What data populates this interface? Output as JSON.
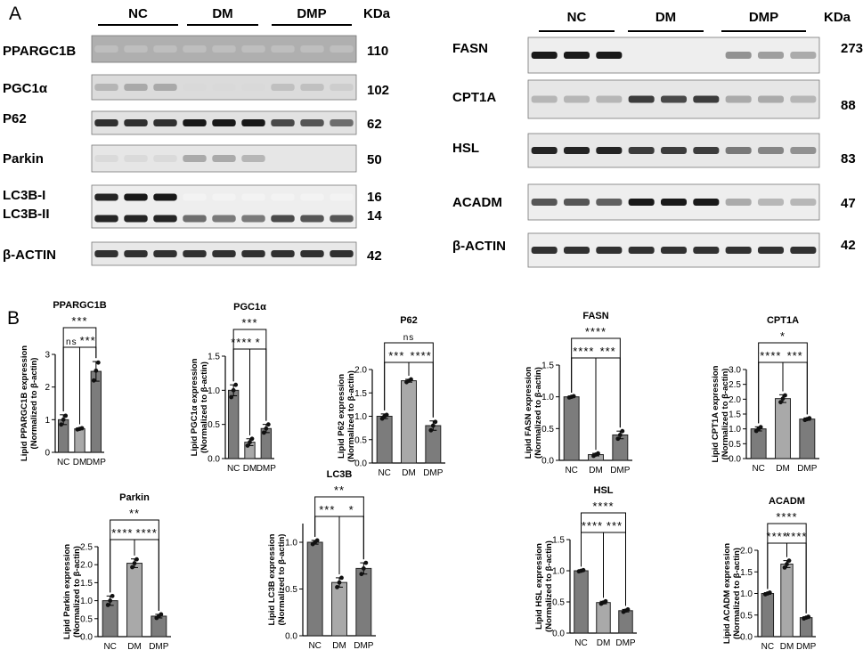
{
  "figure": {
    "panel_a_label": "A",
    "panel_b_label": "B",
    "blot_left": {
      "groups": [
        "NC",
        "DM",
        "DMP"
      ],
      "unit": "KDa",
      "rows": [
        {
          "name": "PPARGC1B",
          "kda": "110",
          "bands": [
            0.25,
            0.25,
            0.25,
            0.25,
            0.25,
            0.25,
            0.25,
            0.25,
            0.25
          ],
          "bg": 0.55
        },
        {
          "name": "PGC1α",
          "kda": "102",
          "bands": [
            0.3,
            0.35,
            0.35,
            0.15,
            0.15,
            0.15,
            0.25,
            0.25,
            0.2
          ],
          "bg": 0.2
        },
        {
          "name": "P62",
          "kda": "62",
          "bands": [
            0.85,
            0.85,
            0.85,
            0.95,
            0.95,
            0.95,
            0.75,
            0.7,
            0.6
          ],
          "bg": 0.15
        },
        {
          "name": "Parkin",
          "kda": "50",
          "bands": [
            0.15,
            0.15,
            0.15,
            0.35,
            0.35,
            0.3,
            0.1,
            0.1,
            0.1
          ],
          "bg": 0.12
        },
        {
          "name": "LC3B-I",
          "name2": "LC3B-II",
          "kda": "16",
          "kda2": "14",
          "bands": [
            0.9,
            0.95,
            0.95,
            0.05,
            0.05,
            0.05,
            0.05,
            0.05,
            0.05
          ],
          "bands2": [
            0.9,
            0.9,
            0.9,
            0.6,
            0.55,
            0.55,
            0.75,
            0.7,
            0.7
          ],
          "bg": 0.05
        },
        {
          "name": "β-ACTIN",
          "kda": "42",
          "bands": [
            0.85,
            0.85,
            0.85,
            0.85,
            0.85,
            0.85,
            0.85,
            0.85,
            0.85
          ],
          "bg": 0.1
        }
      ]
    },
    "blot_right": {
      "groups": [
        "NC",
        "DM",
        "DMP"
      ],
      "unit": "KDa",
      "rows": [
        {
          "name": "FASN",
          "kda": "273",
          "bands": [
            0.95,
            0.95,
            0.95,
            0.0,
            0.0,
            0.0,
            0.45,
            0.4,
            0.35
          ],
          "bg": 0.05
        },
        {
          "name": "CPT1A",
          "kda": "88",
          "bands": [
            0.3,
            0.3,
            0.3,
            0.8,
            0.75,
            0.8,
            0.35,
            0.35,
            0.3
          ],
          "bg": 0.12
        },
        {
          "name": "HSL",
          "kda": "83",
          "bands": [
            0.9,
            0.9,
            0.9,
            0.8,
            0.8,
            0.8,
            0.55,
            0.5,
            0.45
          ],
          "bg": 0.1
        },
        {
          "name": "ACADM",
          "kda": "47",
          "bands": [
            0.7,
            0.7,
            0.65,
            0.95,
            0.95,
            0.95,
            0.35,
            0.3,
            0.3
          ],
          "bg": 0.05
        },
        {
          "name": "β-ACTIN",
          "kda": "42",
          "bands": [
            0.85,
            0.85,
            0.85,
            0.85,
            0.85,
            0.85,
            0.85,
            0.85,
            0.85
          ],
          "bg": 0.05
        }
      ]
    }
  },
  "chart_data": [
    {
      "type": "bar",
      "title": "PPARGC1B",
      "ylabel": "Lipid PPARGC1B expression\n(Normalized to β-actin)",
      "categories": [
        "NC",
        "DM",
        "DMP"
      ],
      "values": [
        1.0,
        0.72,
        2.48
      ],
      "errors": [
        0.15,
        0.03,
        0.3
      ],
      "points": [
        [
          0.85,
          1.0,
          1.12
        ],
        [
          0.7,
          0.72,
          0.74
        ],
        [
          2.2,
          2.5,
          2.75
        ]
      ],
      "ylim": [
        0,
        3
      ],
      "yticks": [
        "0",
        "1",
        "2",
        "3"
      ],
      "significance": [
        {
          "from": 0,
          "to": 1,
          "label": "ns",
          "level": 0
        },
        {
          "from": 1,
          "to": 2,
          "label": "***",
          "level": 0
        },
        {
          "from": 0,
          "to": 2,
          "label": "***",
          "level": 1
        }
      ]
    },
    {
      "type": "bar",
      "title": "PGC1α",
      "ylabel": "Lipid PGC1α expression\n(Normalized to β-actin)",
      "categories": [
        "NC",
        "DM",
        "DMP"
      ],
      "values": [
        1.0,
        0.24,
        0.44
      ],
      "errors": [
        0.08,
        0.05,
        0.06
      ],
      "points": [
        [
          0.9,
          1.0,
          1.08
        ],
        [
          0.19,
          0.24,
          0.29
        ],
        [
          0.38,
          0.44,
          0.5
        ]
      ],
      "ylim": [
        0,
        1.5
      ],
      "yticks": [
        "0.0",
        "0.5",
        "1.0",
        "1.5"
      ],
      "significance": [
        {
          "from": 0,
          "to": 1,
          "label": "****",
          "level": 0
        },
        {
          "from": 1,
          "to": 2,
          "label": "*",
          "level": 0
        },
        {
          "from": 0,
          "to": 2,
          "label": "***",
          "level": 1
        }
      ]
    },
    {
      "type": "bar",
      "title": "P62",
      "ylabel": "Lipid P62 expression\n(Normalized to β-actin)",
      "categories": [
        "NC",
        "DM",
        "DMP"
      ],
      "values": [
        1.0,
        1.76,
        0.8
      ],
      "errors": [
        0.05,
        0.03,
        0.1
      ],
      "points": [
        [
          0.95,
          1.0,
          1.03
        ],
        [
          1.73,
          1.76,
          1.79
        ],
        [
          0.7,
          0.8,
          0.88
        ]
      ],
      "ylim": [
        0,
        2
      ],
      "yticks": [
        "0.0",
        "0.5",
        "1.0",
        "1.5",
        "2.0"
      ],
      "significance": [
        {
          "from": 0,
          "to": 1,
          "label": "***",
          "level": 0
        },
        {
          "from": 1,
          "to": 2,
          "label": "****",
          "level": 0
        },
        {
          "from": 0,
          "to": 2,
          "label": "ns",
          "level": 1
        }
      ]
    },
    {
      "type": "bar",
      "title": "FASN",
      "ylabel": "Lipid FASN expression\n(Normalized to β-actin)",
      "categories": [
        "NC",
        "DM",
        "DMP"
      ],
      "values": [
        1.0,
        0.09,
        0.4
      ],
      "errors": [
        0.01,
        0.02,
        0.06
      ],
      "points": [
        [
          0.99,
          1.0,
          1.01
        ],
        [
          0.07,
          0.09,
          0.11
        ],
        [
          0.34,
          0.4,
          0.46
        ]
      ],
      "ylim": [
        0,
        1.5
      ],
      "yticks": [
        "0.0",
        "0.5",
        "1.0",
        "1.5"
      ],
      "significance": [
        {
          "from": 0,
          "to": 1,
          "label": "****",
          "level": 0
        },
        {
          "from": 1,
          "to": 2,
          "label": "***",
          "level": 0
        },
        {
          "from": 0,
          "to": 2,
          "label": "****",
          "level": 1
        }
      ]
    },
    {
      "type": "bar",
      "title": "CPT1A",
      "ylabel": "Lipid CPT1A expression\n(Normalized to β-actin)",
      "categories": [
        "NC",
        "DM",
        "DMP"
      ],
      "values": [
        1.0,
        2.02,
        1.33
      ],
      "errors": [
        0.07,
        0.13,
        0.04
      ],
      "points": [
        [
          0.93,
          1.0,
          1.06
        ],
        [
          1.9,
          2.02,
          2.13
        ],
        [
          1.3,
          1.33,
          1.36
        ]
      ],
      "ylim": [
        0,
        3
      ],
      "yticks": [
        "0.0",
        "0.5",
        "1.0",
        "1.5",
        "2.0",
        "2.5",
        "3.0"
      ],
      "significance": [
        {
          "from": 0,
          "to": 1,
          "label": "****",
          "level": 0
        },
        {
          "from": 1,
          "to": 2,
          "label": "***",
          "level": 0
        },
        {
          "from": 0,
          "to": 2,
          "label": "*",
          "level": 1
        }
      ]
    },
    {
      "type": "bar",
      "title": "Parkin",
      "ylabel": "Lipid Parkin expression\n(Normalized to β-actin)",
      "categories": [
        "NC",
        "DM",
        "DMP"
      ],
      "values": [
        1.0,
        2.04,
        0.57
      ],
      "errors": [
        0.13,
        0.12,
        0.05
      ],
      "points": [
        [
          0.88,
          1.0,
          1.13
        ],
        [
          1.93,
          2.04,
          2.15
        ],
        [
          0.52,
          0.57,
          0.62
        ]
      ],
      "ylim": [
        0,
        2.5
      ],
      "yticks": [
        "0.0",
        "0.5",
        "1.0",
        "1.5",
        "2.0",
        "2.5"
      ],
      "significance": [
        {
          "from": 0,
          "to": 1,
          "label": "****",
          "level": 0
        },
        {
          "from": 1,
          "to": 2,
          "label": "****",
          "level": 0
        },
        {
          "from": 0,
          "to": 2,
          "label": "**",
          "level": 1
        }
      ]
    },
    {
      "type": "bar",
      "title": "LC3B",
      "ylabel": "Lipid LC3B expression\n(Normalized to β-actin)",
      "categories": [
        "NC",
        "DM",
        "DMP"
      ],
      "values": [
        1.0,
        0.57,
        0.72
      ],
      "errors": [
        0.02,
        0.05,
        0.06
      ],
      "points": [
        [
          0.98,
          1.0,
          1.02
        ],
        [
          0.52,
          0.57,
          0.62
        ],
        [
          0.66,
          0.72,
          0.78
        ]
      ],
      "ylim": [
        0,
        1.2
      ],
      "yticks": [
        "0.0",
        "0.5",
        "1.0"
      ],
      "significance": [
        {
          "from": 0,
          "to": 1,
          "label": "***",
          "level": 0
        },
        {
          "from": 1,
          "to": 2,
          "label": "*",
          "level": 0
        },
        {
          "from": 0,
          "to": 2,
          "label": "**",
          "level": 1
        }
      ]
    },
    {
      "type": "bar",
      "title": "HSL",
      "ylabel": "Lipid HSL expression\n(Normalized to β-actin)",
      "categories": [
        "NC",
        "DM",
        "DMP"
      ],
      "values": [
        1.0,
        0.49,
        0.36
      ],
      "errors": [
        0.01,
        0.02,
        0.02
      ],
      "points": [
        [
          0.99,
          1.0,
          1.01
        ],
        [
          0.47,
          0.49,
          0.51
        ],
        [
          0.34,
          0.36,
          0.38
        ]
      ],
      "ylim": [
        0,
        1.5
      ],
      "yticks": [
        "0.0",
        "0.5",
        "1.0",
        "1.5"
      ],
      "significance": [
        {
          "from": 0,
          "to": 1,
          "label": "****",
          "level": 0
        },
        {
          "from": 1,
          "to": 2,
          "label": "***",
          "level": 0
        },
        {
          "from": 0,
          "to": 2,
          "label": "****",
          "level": 1
        }
      ]
    },
    {
      "type": "bar",
      "title": "ACADM",
      "ylabel": "Lipid ACADM expression\n(Normalized to β-actin)",
      "categories": [
        "NC",
        "DM",
        "DMP"
      ],
      "values": [
        1.0,
        1.68,
        0.44
      ],
      "errors": [
        0.02,
        0.08,
        0.02
      ],
      "points": [
        [
          0.98,
          1.0,
          1.02
        ],
        [
          1.6,
          1.68,
          1.76
        ],
        [
          0.42,
          0.44,
          0.46
        ]
      ],
      "ylim": [
        0,
        2.0
      ],
      "yticks": [
        "0.0",
        "0.5",
        "1.0",
        "1.5",
        "2.0"
      ],
      "significance": [
        {
          "from": 0,
          "to": 1,
          "label": "****",
          "level": 0
        },
        {
          "from": 1,
          "to": 2,
          "label": "****",
          "level": 0
        },
        {
          "from": 0,
          "to": 2,
          "label": "****",
          "level": 1
        }
      ]
    }
  ]
}
